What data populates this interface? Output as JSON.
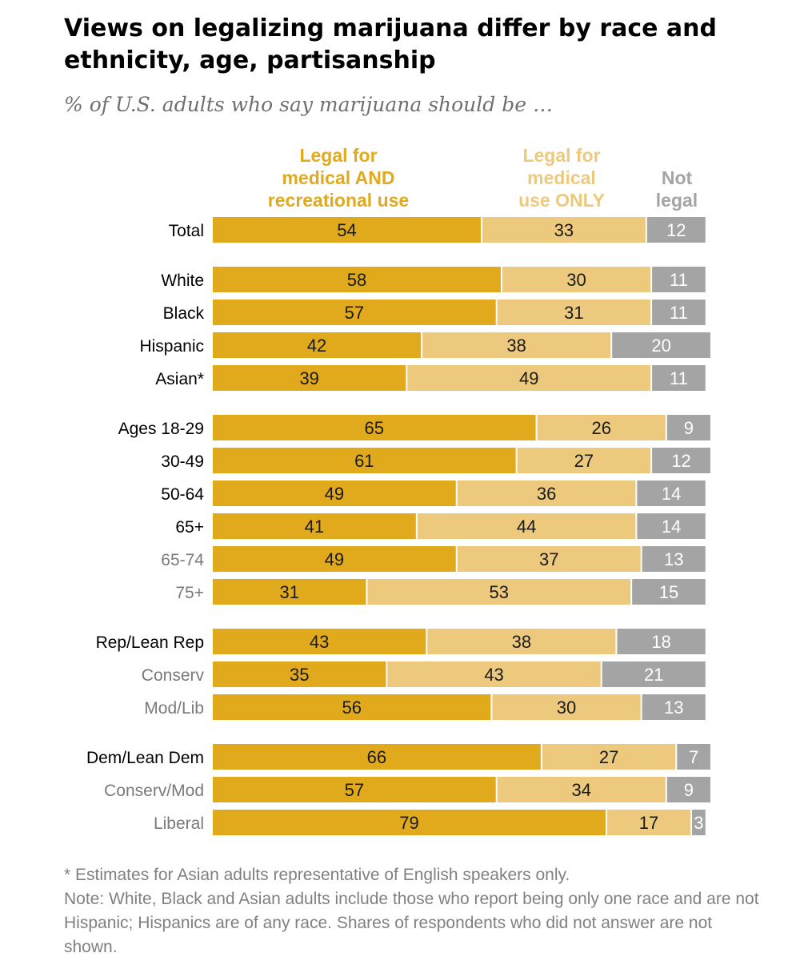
{
  "header": {
    "title": "Views on legalizing marijuana differ by race and ethnicity, age, partisanship",
    "subtitle": "% of U.S. adults who say marijuana should be …"
  },
  "chart_data": {
    "type": "bar",
    "stacked": true,
    "orientation": "horizontal",
    "unit": "%",
    "legend": [
      {
        "name": "Legal for medical AND recreational use",
        "lines": [
          "Legal for",
          "medical AND",
          "recreational use"
        ],
        "color": "#e1a91c"
      },
      {
        "name": "Legal for medical use ONLY",
        "lines": [
          "Legal for",
          "medical",
          "use ONLY"
        ],
        "color": "#ecc97c"
      },
      {
        "name": "Not legal",
        "lines": [
          "Not",
          "legal"
        ],
        "color": "#a4a4a4"
      }
    ],
    "categories": [
      "Total",
      "White",
      "Black",
      "Hispanic",
      "Asian*",
      "Ages 18-29",
      "30-49",
      "50-64",
      "65+",
      "65-74",
      "75+",
      "Rep/Lean Rep",
      "Conserv",
      "Mod/Lib",
      "Dem/Lean  Dem",
      "Conserv/Mod",
      "Liberal"
    ],
    "subgroup": [
      false,
      false,
      false,
      false,
      false,
      false,
      false,
      false,
      false,
      true,
      true,
      false,
      true,
      true,
      false,
      true,
      true
    ],
    "groups": [
      1,
      2,
      2,
      2,
      2,
      3,
      3,
      3,
      3,
      3,
      3,
      4,
      4,
      4,
      5,
      5,
      5
    ],
    "series": [
      {
        "name": "Legal for medical AND recreational use",
        "values": [
          54,
          58,
          57,
          42,
          39,
          65,
          61,
          49,
          41,
          49,
          31,
          43,
          35,
          56,
          66,
          57,
          79
        ]
      },
      {
        "name": "Legal for medical use ONLY",
        "values": [
          33,
          30,
          31,
          38,
          49,
          26,
          27,
          36,
          44,
          37,
          53,
          38,
          43,
          30,
          27,
          34,
          17
        ]
      },
      {
        "name": "Not legal",
        "values": [
          12,
          11,
          11,
          20,
          11,
          9,
          12,
          14,
          14,
          13,
          15,
          18,
          21,
          13,
          7,
          9,
          3
        ]
      }
    ],
    "xlim": [
      0,
      100
    ]
  },
  "footnotes": {
    "asterisk": "* Estimates for Asian adults representative of English speakers only.",
    "note": "Note: White, Black and Asian adults include those who report being only one race and are not Hispanic; Hispanics are of any race. Shares of respondents who did not answer are not shown."
  },
  "colors": {
    "medical_and_recreational": "#e1a91c",
    "medical_only": "#ecc97c",
    "not_legal": "#a4a4a4",
    "label_main": "#000000",
    "label_sub": "#7a7a7a"
  }
}
